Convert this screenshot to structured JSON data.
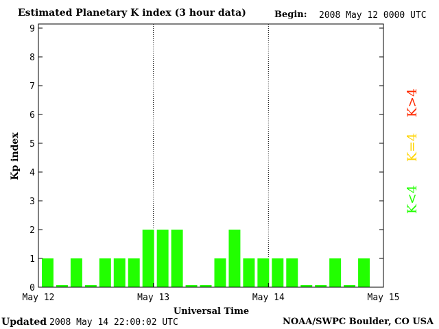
{
  "header": {
    "title": "Estimated Planetary K index (3 hour data)",
    "begin_label": "Begin:",
    "begin_value": "2008 May 12 0000 UTC"
  },
  "footer": {
    "updated_label": "Updated",
    "updated_value": "2008 May 14 22:00:02 UTC",
    "source": "NOAA/SWPC Boulder, CO USA"
  },
  "legend": {
    "high": {
      "label": "K>4",
      "color": "#ff2a00"
    },
    "equal": {
      "label": "K=4",
      "color": "#ffd400"
    },
    "low": {
      "label": "K<4",
      "color": "#22ff00"
    }
  },
  "chart_data": {
    "type": "bar",
    "title": "Estimated Planetary K index (3 hour data)",
    "xlabel": "Universal Time",
    "ylabel": "Kp index",
    "ylim": [
      0,
      9
    ],
    "yticks": [
      0,
      1,
      2,
      3,
      4,
      5,
      6,
      7,
      8,
      9
    ],
    "xticks": [
      "May 12",
      "May 13",
      "May 14",
      "May 15"
    ],
    "interval_hours": 3,
    "bar_color": "#22ff00",
    "day_separators": [
      "May 13",
      "May 14"
    ],
    "series": [
      {
        "values": [
          1,
          0,
          1,
          0,
          1,
          1,
          1,
          2,
          2,
          2,
          0,
          0,
          1,
          2,
          1,
          1,
          1,
          1,
          0,
          0,
          1,
          0,
          1
        ]
      }
    ]
  }
}
